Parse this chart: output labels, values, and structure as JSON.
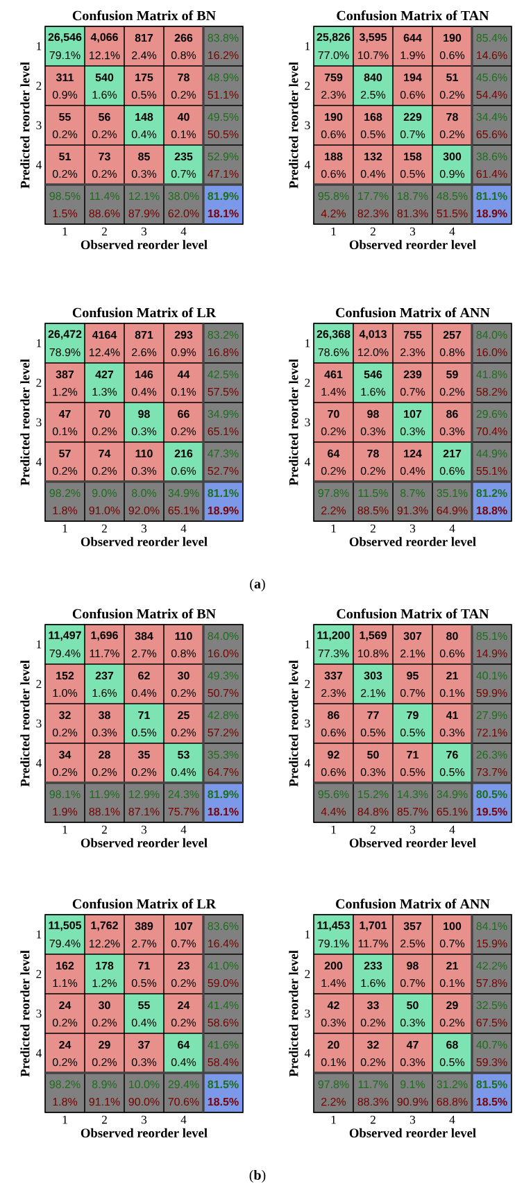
{
  "chart_data": [
    {
      "type": "heatmap",
      "categories": [
        "1",
        "2",
        "3",
        "4",
        null
      ],
      "y_categories": [
        "1",
        "2",
        "3",
        "4",
        null
      ],
      "tick_labels": false,
      "cells": [
        [
          79.1,
          12.1,
          2.4,
          0.8,
          16.2
        ],
        [
          0.9,
          1.6,
          0.5,
          0.2,
          51.1
        ],
        [
          0.2,
          0.2,
          0.4,
          0.1,
          50.5
        ],
        [
          0.2,
          0.2,
          0.3,
          0.7,
          47.1
        ],
        [
          1.5,
          88.6,
          87.9,
          62.0,
          18.1
        ]
      ],
      "cell_labels": [
        [
          "79.1%",
          "12.1%",
          "2.4%",
          "0.8%",
          "16.2%"
        ],
        [
          "0.9%",
          "1.6%",
          "0.5%",
          "0.2%",
          "51.1%"
        ],
        [
          "0.2%",
          "0.2%",
          "0.4%",
          "0.1%",
          "50.5%"
        ],
        [
          "0.2%",
          "0.2%",
          "0.3%",
          "0.7%",
          "47.1%"
        ],
        [
          "1.5%",
          "88.6%",
          "87.9%",
          "62.0%",
          "18.1%"
        ]
      ]
    },
    {
      "type": "heatmap",
      "title": "Confusion Matrix of BN",
      "xlabel": "Observed reorder level",
      "ylabel": "Predicted reorder level",
      "categories": [
        "1",
        "2",
        "3",
        "4",
        null
      ],
      "y_categories": [
        "1",
        "2",
        "3",
        "4",
        null
      ],
      "colors": [
        "#7ee3b3",
        "#e8908c",
        "#808080",
        "#7b99e8"
      ],
      "cells": [
        [
          26546,
          4066,
          817,
          266,
          83.8
        ],
        [
          311,
          540,
          175,
          78,
          48.9
        ],
        [
          55,
          56,
          148,
          40,
          49.5
        ],
        [
          51,
          73,
          85,
          235,
          52.9
        ],
        [
          98.5,
          11.4,
          12.1,
          38.0,
          81.9
        ]
      ],
      "cell_labels": [
        [
          "26,546",
          "4,066",
          "817",
          "266",
          "83.8%"
        ],
        [
          "311",
          "540",
          "175",
          "78",
          "48.9%"
        ],
        [
          "55",
          "56",
          "148",
          "40",
          "49.5%"
        ],
        [
          "51",
          "73",
          "85",
          "235",
          "52.9%"
        ],
        [
          "98.5%",
          "11.4%",
          "12.1%",
          "38.0%",
          "81.9%"
        ]
      ]
    },
    {
      "type": "heatmap",
      "categories": [
        "1",
        "2",
        "3",
        "4",
        null
      ],
      "y_categories": [
        "1",
        "2",
        "3",
        "4",
        null
      ],
      "tick_labels": false,
      "cells": [
        [
          77.0,
          10.7,
          1.9,
          0.6,
          14.6
        ],
        [
          2.3,
          2.5,
          0.6,
          0.2,
          54.4
        ],
        [
          0.6,
          0.5,
          0.7,
          0.2,
          65.6
        ],
        [
          0.6,
          0.4,
          0.5,
          0.9,
          61.4
        ],
        [
          4.2,
          82.3,
          81.3,
          51.5,
          18.9
        ]
      ],
      "cell_labels": [
        [
          "77.0%",
          "10.7%",
          "1.9%",
          "0.6%",
          "14.6%"
        ],
        [
          "2.3%",
          "2.5%",
          "0.6%",
          "0.2%",
          "54.4%"
        ],
        [
          "0.6%",
          "0.5%",
          "0.7%",
          "0.2%",
          "65.6%"
        ],
        [
          "0.6%",
          "0.4%",
          "0.5%",
          "0.9%",
          "61.4%"
        ],
        [
          "4.2%",
          "82.3%",
          "81.3%",
          "51.5%",
          "18.9%"
        ]
      ]
    },
    {
      "type": "heatmap",
      "title": "Confusion Matrix of TAN",
      "xlabel": "Observed reorder level",
      "ylabel": "Predicted reorder level",
      "categories": [
        "1",
        "2",
        "3",
        "4",
        null
      ],
      "y_categories": [
        "1",
        "2",
        "3",
        "4",
        null
      ],
      "colors": [
        "#7ee3b3",
        "#e8908c",
        "#808080",
        "#7b99e8"
      ],
      "cells": [
        [
          25826,
          3595,
          644,
          190,
          85.4
        ],
        [
          759,
          840,
          194,
          51,
          45.6
        ],
        [
          190,
          168,
          229,
          78,
          34.4
        ],
        [
          188,
          132,
          158,
          300,
          38.6
        ],
        [
          95.8,
          17.7,
          18.7,
          48.5,
          81.1
        ]
      ],
      "cell_labels": [
        [
          "25,826",
          "3,595",
          "644",
          "190",
          "85.4%"
        ],
        [
          "759",
          "840",
          "194",
          "51",
          "45.6%"
        ],
        [
          "190",
          "168",
          "229",
          "78",
          "34.4%"
        ],
        [
          "188",
          "132",
          "158",
          "300",
          "38.6%"
        ],
        [
          "95.8%",
          "17.7%",
          "18.7%",
          "48.5%",
          "81.1%"
        ]
      ]
    },
    {
      "type": "heatmap",
      "categories": [
        "1",
        "2",
        "3",
        "4",
        null
      ],
      "y_categories": [
        "1",
        "2",
        "3",
        "4",
        null
      ],
      "tick_labels": false,
      "cells": [
        [
          78.9,
          12.4,
          2.6,
          0.9,
          16.8
        ],
        [
          1.2,
          1.3,
          0.4,
          0.1,
          57.5
        ],
        [
          0.1,
          0.2,
          0.3,
          0.2,
          65.1
        ],
        [
          0.2,
          0.2,
          0.3,
          0.6,
          52.7
        ],
        [
          1.8,
          91.0,
          92.0,
          65.1,
          18.9
        ]
      ],
      "cell_labels": [
        [
          "78.9%",
          "12.4%",
          "2.6%",
          "0.9%",
          "16.8%"
        ],
        [
          "1.2%",
          "1.3%",
          "0.4%",
          "0.1%",
          "57.5%"
        ],
        [
          "0.1%",
          "0.2%",
          "0.3%",
          "0.2%",
          "65.1%"
        ],
        [
          "0.2%",
          "0.2%",
          "0.3%",
          "0.6%",
          "52.7%"
        ],
        [
          "1.8%",
          "91.0%",
          "92.0%",
          "65.1%",
          "18.9%"
        ]
      ]
    },
    {
      "type": "heatmap",
      "title": "Confusion Matrix of LR",
      "xlabel": "Observed reorder level",
      "ylabel": "Predicted reorder level",
      "categories": [
        "1",
        "2",
        "3",
        "4",
        null
      ],
      "y_categories": [
        "1",
        "2",
        "3",
        "4",
        null
      ],
      "colors": [
        "#7ee3b3",
        "#e8908c",
        "#808080",
        "#7b99e8"
      ],
      "cells": [
        [
          26472,
          4164,
          871,
          293,
          83.2
        ],
        [
          387,
          427,
          146,
          44,
          42.5
        ],
        [
          47,
          70,
          98,
          66,
          34.9
        ],
        [
          57,
          74,
          110,
          216,
          47.3
        ],
        [
          98.2,
          9.0,
          8.0,
          34.9,
          81.1
        ]
      ],
      "cell_labels": [
        [
          "26,472",
          "4164",
          "871",
          "293",
          "83.2%"
        ],
        [
          "387",
          "427",
          "146",
          "44",
          "42.5%"
        ],
        [
          "47",
          "70",
          "98",
          "66",
          "34.9%"
        ],
        [
          "57",
          "74",
          "110",
          "216",
          "47.3%"
        ],
        [
          "98.2%",
          "9.0%",
          "8.0%",
          "34.9%",
          "81.1%"
        ]
      ]
    },
    {
      "type": "heatmap",
      "categories": [
        "1",
        "2",
        "3",
        "4",
        null
      ],
      "y_categories": [
        "1",
        "2",
        "3",
        "4",
        null
      ],
      "tick_labels": false,
      "cells": [
        [
          78.6,
          12.0,
          2.3,
          0.8,
          16.0
        ],
        [
          1.4,
          1.6,
          0.7,
          0.2,
          58.2
        ],
        [
          0.2,
          0.3,
          0.3,
          0.3,
          70.4
        ],
        [
          0.2,
          0.2,
          0.4,
          0.6,
          55.1
        ],
        [
          2.2,
          88.5,
          91.3,
          64.9,
          18.8
        ]
      ],
      "cell_labels": [
        [
          "78.6%",
          "12.0%",
          "2.3%",
          "0.8%",
          "16.0%"
        ],
        [
          "1.4%",
          "1.6%",
          "0.7%",
          "0.2%",
          "58.2%"
        ],
        [
          "0.2%",
          "0.3%",
          "0.3%",
          "0.3%",
          "70.4%"
        ],
        [
          "0.2%",
          "0.2%",
          "0.4%",
          "0.6%",
          "55.1%"
        ],
        [
          "2.2%",
          "88.5%",
          "91.3%",
          "64.9%",
          "18.8%"
        ]
      ]
    },
    {
      "type": "heatmap",
      "title": "Confusion Matrix of ANN",
      "xlabel": "Observed reorder level",
      "ylabel": "Predicted reorder level",
      "categories": [
        "1",
        "2",
        "3",
        "4",
        null
      ],
      "y_categories": [
        "1",
        "2",
        "3",
        "4",
        null
      ],
      "colors": [
        "#7ee3b3",
        "#e8908c",
        "#808080",
        "#7b99e8"
      ],
      "annotations": [
        "(**a**)"
      ],
      "cells": [
        [
          26368,
          4013,
          755,
          257,
          84.0
        ],
        [
          461,
          546,
          239,
          59,
          41.8
        ],
        [
          70,
          98,
          107,
          86,
          29.6
        ],
        [
          64,
          78,
          124,
          217,
          44.9
        ],
        [
          97.8,
          11.5,
          8.7,
          35.1,
          81.2
        ]
      ],
      "cell_labels": [
        [
          "26,368",
          "4,013",
          "755",
          "257",
          "84.0%"
        ],
        [
          "461",
          "546",
          "239",
          "59",
          "41.8%"
        ],
        [
          "70",
          "98",
          "107",
          "86",
          "29.6%"
        ],
        [
          "64",
          "78",
          "124",
          "217",
          "44.9%"
        ],
        [
          "97.8%",
          "11.5%",
          "8.7%",
          "35.1%",
          "81.2%"
        ]
      ]
    },
    {
      "type": "heatmap",
      "categories": [
        "1",
        "2",
        "3",
        "4",
        null
      ],
      "y_categories": [
        "1",
        "2",
        "3",
        "4",
        null
      ],
      "tick_labels": false,
      "cells": [
        [
          79.4,
          11.7,
          2.7,
          0.8,
          16.0
        ],
        [
          1.0,
          1.6,
          0.4,
          0.2,
          50.7
        ],
        [
          0.2,
          0.3,
          0.5,
          0.2,
          57.2
        ],
        [
          0.2,
          0.2,
          0.2,
          0.4,
          64.7
        ],
        [
          1.9,
          88.1,
          87.1,
          75.7,
          18.1
        ]
      ],
      "cell_labels": [
        [
          "79.4%",
          "11.7%",
          "2.7%",
          "0.8%",
          "16.0%"
        ],
        [
          "1.0%",
          "1.6%",
          "0.4%",
          "0.2%",
          "50.7%"
        ],
        [
          "0.2%",
          "0.3%",
          "0.5%",
          "0.2%",
          "57.2%"
        ],
        [
          "0.2%",
          "0.2%",
          "0.2%",
          "0.4%",
          "64.7%"
        ],
        [
          "1.9%",
          "88.1%",
          "87.1%",
          "75.7%",
          "18.1%"
        ]
      ]
    },
    {
      "type": "heatmap",
      "title": "Confusion Matrix of BN",
      "xlabel": "Observed reorder level",
      "ylabel": "Predicted reorder level",
      "categories": [
        "1",
        "2",
        "3",
        "4",
        null
      ],
      "y_categories": [
        "1",
        "2",
        "3",
        "4",
        null
      ],
      "colors": [
        "#7ee3b3",
        "#e8908c",
        "#808080",
        "#7b99e8"
      ],
      "cells": [
        [
          11497,
          1696,
          384,
          110,
          84.0
        ],
        [
          152,
          237,
          62,
          30,
          49.3
        ],
        [
          32,
          38,
          71,
          25,
          42.8
        ],
        [
          34,
          28,
          35,
          53,
          35.3
        ],
        [
          98.1,
          11.9,
          12.9,
          24.3,
          81.9
        ]
      ],
      "cell_labels": [
        [
          "11,497",
          "1,696",
          "384",
          "110",
          "84.0%"
        ],
        [
          "152",
          "237",
          "62",
          "30",
          "49.3%"
        ],
        [
          "32",
          "38",
          "71",
          "25",
          "42.8%"
        ],
        [
          "34",
          "28",
          "35",
          "53",
          "35.3%"
        ],
        [
          "98.1%",
          "11.9%",
          "12.9%",
          "24.3%",
          "81.9%"
        ]
      ]
    },
    {
      "type": "heatmap",
      "categories": [
        "1",
        "2",
        "3",
        "4",
        null
      ],
      "y_categories": [
        "1",
        "2",
        "3",
        "4",
        null
      ],
      "tick_labels": false,
      "cells": [
        [
          77.3,
          10.8,
          2.1,
          0.6,
          14.9
        ],
        [
          2.3,
          2.1,
          0.7,
          0.1,
          59.9
        ],
        [
          0.6,
          0.5,
          0.5,
          0.3,
          72.1
        ],
        [
          0.6,
          0.3,
          0.5,
          0.5,
          73.7
        ],
        [
          4.4,
          84.8,
          85.7,
          65.1,
          19.5
        ]
      ],
      "cell_labels": [
        [
          "77.3%",
          "10.8%",
          "2.1%",
          "0.6%",
          "14.9%"
        ],
        [
          "2.3%",
          "2.1%",
          "0.7%",
          "0.1%",
          "59.9%"
        ],
        [
          "0.6%",
          "0.5%",
          "0.5%",
          "0.3%",
          "72.1%"
        ],
        [
          "0.6%",
          "0.3%",
          "0.5%",
          "0.5%",
          "73.7%"
        ],
        [
          "4.4%",
          "84.8%",
          "85.7%",
          "65.1%",
          "19.5%"
        ]
      ]
    },
    {
      "type": "heatmap",
      "title": "Confusion Matrix of TAN",
      "xlabel": "Observed reorder level",
      "ylabel": "Predicted reorder level",
      "categories": [
        "1",
        "2",
        "3",
        "4",
        null
      ],
      "y_categories": [
        "1",
        "2",
        "3",
        "4",
        null
      ],
      "colors": [
        "#7ee3b3",
        "#e8908c",
        "#808080",
        "#7b99e8"
      ],
      "cells": [
        [
          11200,
          1569,
          307,
          80,
          85.1
        ],
        [
          337,
          303,
          95,
          21,
          40.1
        ],
        [
          86,
          77,
          79,
          41,
          27.9
        ],
        [
          92,
          50,
          71,
          76,
          26.3
        ],
        [
          95.6,
          15.2,
          14.3,
          34.9,
          80.5
        ]
      ],
      "cell_labels": [
        [
          "11,200",
          "1,569",
          "307",
          "80",
          "85.1%"
        ],
        [
          "337",
          "303",
          "95",
          "21",
          "40.1%"
        ],
        [
          "86",
          "77",
          "79",
          "41",
          "27.9%"
        ],
        [
          "92",
          "50",
          "71",
          "76",
          "26.3%"
        ],
        [
          "95.6%",
          "15.2%",
          "14.3%",
          "34.9%",
          "80.5%"
        ]
      ]
    },
    {
      "type": "heatmap",
      "categories": [
        "1",
        "2",
        "3",
        "4",
        null
      ],
      "y_categories": [
        "1",
        "2",
        "3",
        "4",
        null
      ],
      "tick_labels": false,
      "cells": [
        [
          79.4,
          12.2,
          2.7,
          0.7,
          16.4
        ],
        [
          1.1,
          1.2,
          0.5,
          0.2,
          59.0
        ],
        [
          0.2,
          0.2,
          0.4,
          0.2,
          58.6
        ],
        [
          0.2,
          0.2,
          0.3,
          0.4,
          58.4
        ],
        [
          1.8,
          91.1,
          90.0,
          70.6,
          18.5
        ]
      ],
      "cell_labels": [
        [
          "79.4%",
          "12.2%",
          "2.7%",
          "0.7%",
          "16.4%"
        ],
        [
          "1.1%",
          "1.2%",
          "0.5%",
          "0.2%",
          "59.0%"
        ],
        [
          "0.2%",
          "0.2%",
          "0.4%",
          "0.2%",
          "58.6%"
        ],
        [
          "0.2%",
          "0.2%",
          "0.3%",
          "0.4%",
          "58.4%"
        ],
        [
          "1.8%",
          "91.1%",
          "90.0%",
          "70.6%",
          "18.5%"
        ]
      ]
    },
    {
      "type": "heatmap",
      "title": "Confusion Matrix of LR",
      "xlabel": "Observed reorder level",
      "ylabel": "Predicted reorder level",
      "categories": [
        "1",
        "2",
        "3",
        "4",
        null
      ],
      "y_categories": [
        "1",
        "2",
        "3",
        "4",
        null
      ],
      "colors": [
        "#7ee3b3",
        "#e8908c",
        "#808080",
        "#7b99e8"
      ],
      "cells": [
        [
          11505,
          1762,
          389,
          107,
          83.6
        ],
        [
          162,
          178,
          71,
          23,
          41.0
        ],
        [
          24,
          30,
          55,
          24,
          41.4
        ],
        [
          24,
          29,
          37,
          64,
          41.6
        ],
        [
          98.2,
          8.9,
          10.0,
          29.4,
          81.5
        ]
      ],
      "cell_labels": [
        [
          "11,505",
          "1,762",
          "389",
          "107",
          "83.6%"
        ],
        [
          "162",
          "178",
          "71",
          "23",
          "41.0%"
        ],
        [
          "24",
          "30",
          "55",
          "24",
          "41.4%"
        ],
        [
          "24",
          "29",
          "37",
          "64",
          "41.6%"
        ],
        [
          "98.2%",
          "8.9%",
          "10.0%",
          "29.4%",
          "81.5%"
        ]
      ]
    },
    {
      "type": "heatmap",
      "categories": [
        "1",
        "2",
        "3",
        "4",
        null
      ],
      "y_categories": [
        "1",
        "2",
        "3",
        "4",
        null
      ],
      "tick_labels": false,
      "cells": [
        [
          79.1,
          11.7,
          2.5,
          0.7,
          15.9
        ],
        [
          1.4,
          1.6,
          0.7,
          0.1,
          57.8
        ],
        [
          0.3,
          0.2,
          0.3,
          0.2,
          67.5
        ],
        [
          0.1,
          0.2,
          0.3,
          0.5,
          59.3
        ],
        [
          2.2,
          88.3,
          90.9,
          68.8,
          18.5
        ]
      ],
      "cell_labels": [
        [
          "79.1%",
          "11.7%",
          "2.5%",
          "0.7%",
          "15.9%"
        ],
        [
          "1.4%",
          "1.6%",
          "0.7%",
          "0.1%",
          "57.8%"
        ],
        [
          "0.3%",
          "0.2%",
          "0.3%",
          "0.2%",
          "67.5%"
        ],
        [
          "0.1%",
          "0.2%",
          "0.3%",
          "0.5%",
          "59.3%"
        ],
        [
          "2.2%",
          "88.3%",
          "90.9%",
          "68.8%",
          "18.5%"
        ]
      ]
    },
    {
      "type": "heatmap",
      "title": "Confusion Matrix of ANN",
      "xlabel": "Observed reorder level",
      "ylabel": "Predicted reorder level",
      "categories": [
        "1",
        "2",
        "3",
        "4",
        null
      ],
      "y_categories": [
        "1",
        "2",
        "3",
        "4",
        null
      ],
      "colors": [
        "#7ee3b3",
        "#e8908c",
        "#808080",
        "#7b99e8"
      ],
      "annotations": [
        "(**b**)"
      ],
      "cells": [
        [
          11453,
          1701,
          357,
          100,
          84.1
        ],
        [
          200,
          233,
          98,
          21,
          42.2
        ],
        [
          42,
          33,
          50,
          29,
          32.5
        ],
        [
          20,
          32,
          47,
          68,
          40.7
        ],
        [
          97.8,
          11.7,
          9.1,
          31.2,
          81.5
        ]
      ],
      "cell_labels": [
        [
          "11,453",
          "1,701",
          "357",
          "100",
          "84.1%"
        ],
        [
          "200",
          "233",
          "98",
          "21",
          "42.2%"
        ],
        [
          "42",
          "33",
          "50",
          "29",
          "32.5%"
        ],
        [
          "20",
          "32",
          "47",
          "68",
          "40.7%"
        ],
        [
          "97.8%",
          "11.7%",
          "9.1%",
          "31.2%",
          "81.5%"
        ]
      ]
    }
  ]
}
